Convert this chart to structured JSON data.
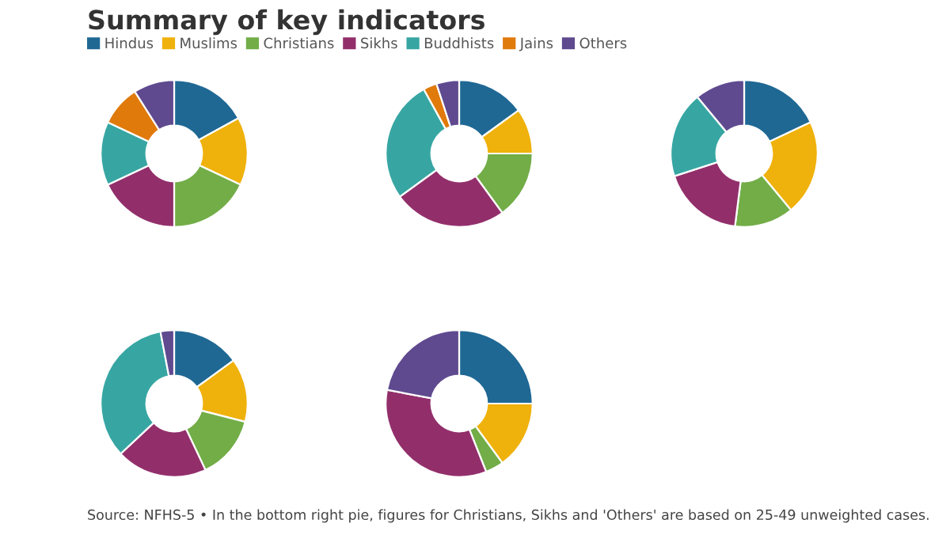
{
  "chart_data": [
    {
      "type": "donut",
      "title": "Summary of key indicators",
      "legend": "top right",
      "categories": [
        "Hindus",
        "Muslims",
        "Christians",
        "Sikhs",
        "Buddhists",
        "Jains",
        "Others"
      ],
      "values": [
        17,
        15,
        18,
        18,
        14,
        9,
        9
      ],
      "colors": [
        "#1f6894",
        "#efb10b",
        "#72ad47",
        "#922f6b",
        "#37a6a3",
        "#e07a0b",
        "#5f4a8f"
      ]
    },
    {
      "type": "donut",
      "categories": [
        null,
        null,
        null,
        null,
        null,
        null,
        null
      ],
      "values": [
        15,
        10,
        15,
        25,
        27,
        3,
        5
      ],
      "colors": [
        "#1f6894",
        "#efb10b",
        "#72ad47",
        "#922f6b",
        "#37a6a3",
        "#e07a0b",
        "#5f4a8f"
      ]
    },
    {
      "type": "donut",
      "categories": [
        null,
        null,
        null,
        null,
        null,
        null
      ],
      "values": [
        18,
        21,
        13,
        18,
        19,
        11
      ],
      "colors": [
        "#1f6894",
        "#efb10b",
        "#72ad47",
        "#922f6b",
        "#37a6a3",
        "#5f4a8f"
      ]
    },
    {
      "type": "donut",
      "categories": [
        null,
        null,
        null,
        null,
        null,
        null
      ],
      "values": [
        15,
        14,
        14,
        20,
        34,
        3
      ],
      "colors": [
        "#1f6894",
        "#efb10b",
        "#72ad47",
        "#922f6b",
        "#37a6a3",
        "#5f4a8f"
      ]
    },
    {
      "type": "donut",
      "categories": [
        null,
        null,
        null,
        null,
        null
      ],
      "values": [
        25,
        15,
        4,
        34,
        22
      ],
      "colors": [
        "#1f6894",
        "#efb10b",
        "#72ad47",
        "#922f6b",
        "#5f4a8f"
      ],
      "annotations": [
        "Source: NFHS-5 • In the bottom right pie, figures for Christians, Sikhs and 'Others' are based on 25-49 unweighted cases."
      ]
    }
  ]
}
